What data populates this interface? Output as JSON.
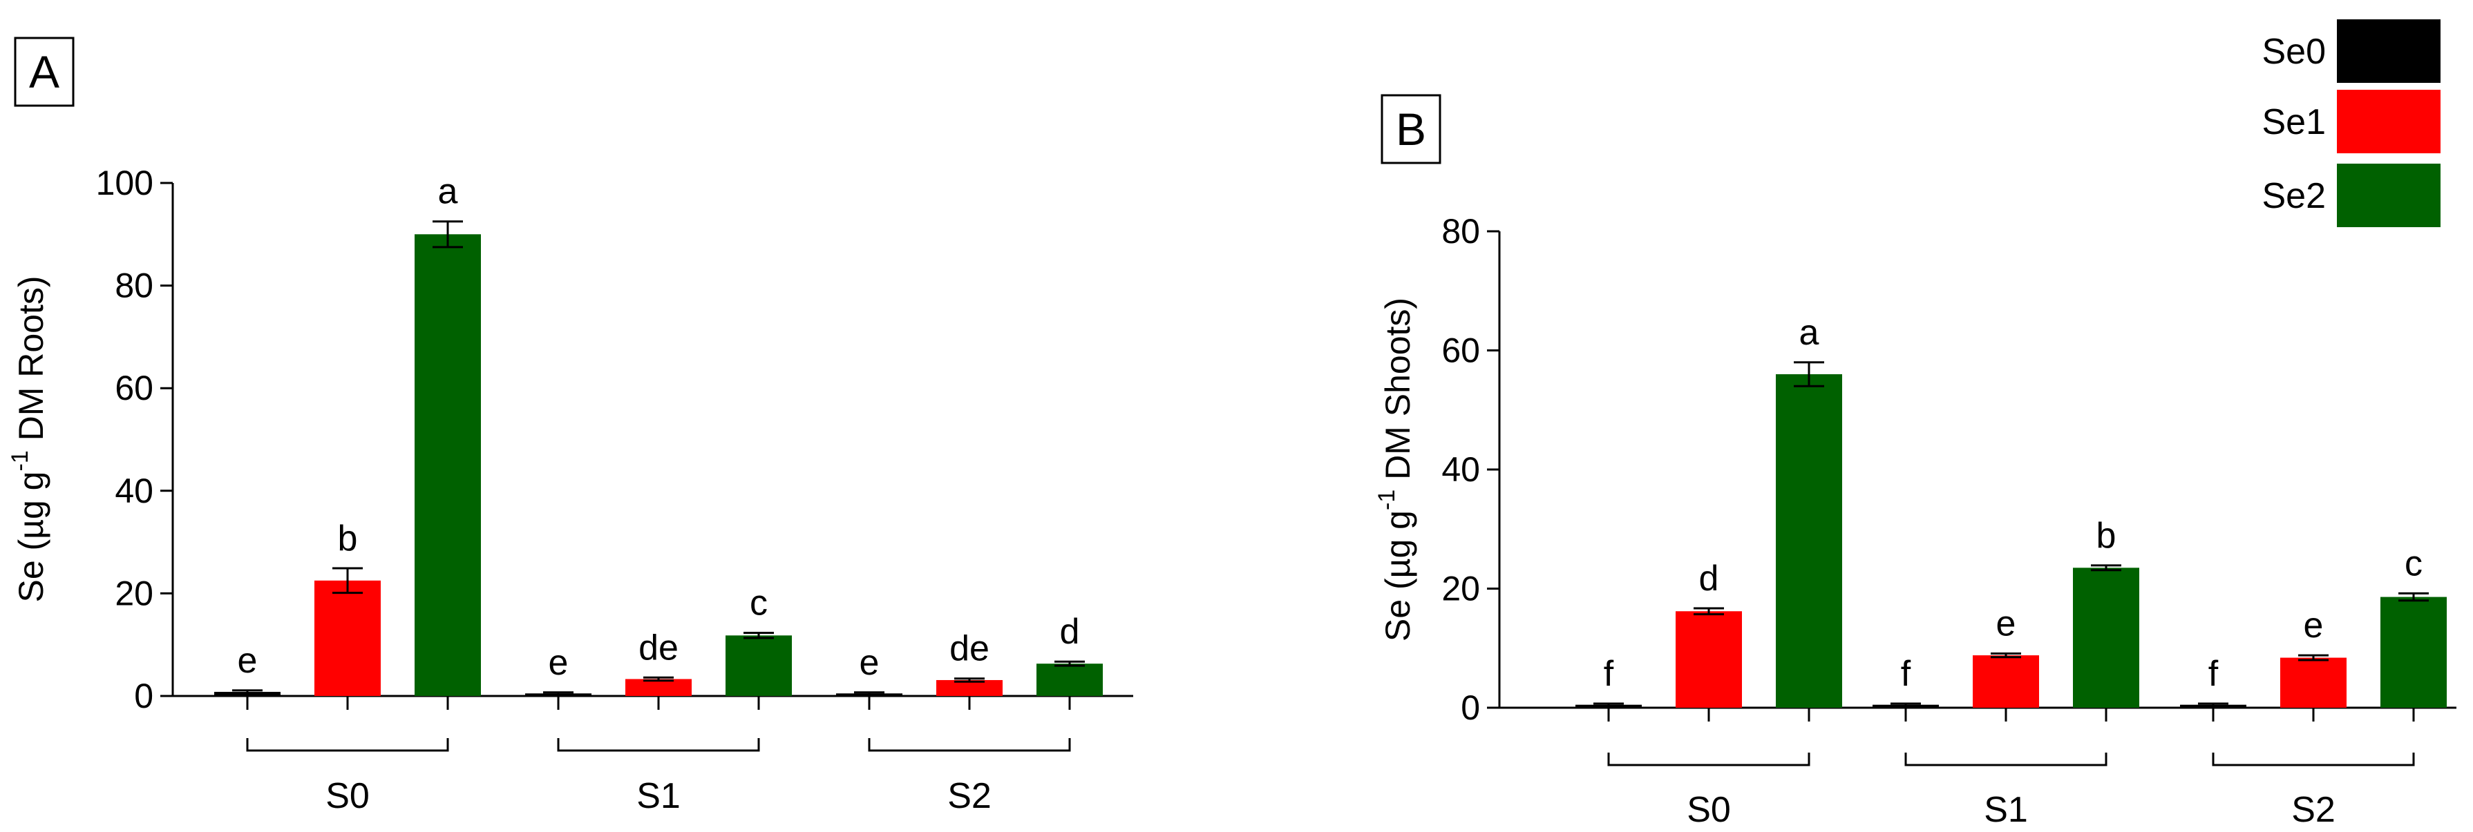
{
  "legend": {
    "entries": [
      {
        "label": "Se0",
        "color": "#000000"
      },
      {
        "label": "Se1",
        "color": "#ff0000"
      },
      {
        "label": "Se2",
        "color": "#006100"
      }
    ]
  },
  "chart_data": [
    {
      "type": "bar",
      "panel_label": "A",
      "ylabel_prefix": "Se (µg g",
      "ylabel_superscript": "-1",
      "ylabel_suffix": " DM Roots)",
      "ylim": [
        0,
        100
      ],
      "yticks": [
        "0",
        "20",
        "40",
        "60",
        "80",
        "100"
      ],
      "groups": [
        "S0",
        "S1",
        "S2"
      ],
      "series": [
        {
          "name": "Se0",
          "values": [
            0.8,
            0.5,
            0.5
          ],
          "errors": [
            0.3,
            0.2,
            0.2
          ],
          "letters": [
            "e",
            "e",
            "e"
          ]
        },
        {
          "name": "Se1",
          "values": [
            22.5,
            3.3,
            3.1
          ],
          "errors": [
            2.4,
            0.3,
            0.3
          ],
          "letters": [
            "b",
            "de",
            "de"
          ]
        },
        {
          "name": "Se2",
          "values": [
            90.0,
            11.8,
            6.3
          ],
          "errors": [
            2.5,
            0.5,
            0.4
          ],
          "letters": [
            "a",
            "c",
            "d"
          ]
        }
      ]
    },
    {
      "type": "bar",
      "panel_label": "B",
      "ylabel_prefix": "Se (µg g",
      "ylabel_superscript": "-1",
      "ylabel_suffix": " DM Shoots)",
      "ylim": [
        0,
        80
      ],
      "yticks": [
        "0",
        "20",
        "40",
        "60",
        "80"
      ],
      "groups": [
        "S0",
        "S1",
        "S2"
      ],
      "series": [
        {
          "name": "Se0",
          "values": [
            0.5,
            0.5,
            0.5
          ],
          "errors": [
            0.2,
            0.2,
            0.2
          ],
          "letters": [
            "f",
            "f",
            "f"
          ]
        },
        {
          "name": "Se1",
          "values": [
            16.2,
            8.8,
            8.4
          ],
          "errors": [
            0.5,
            0.3,
            0.4
          ],
          "letters": [
            "d",
            "e",
            "e"
          ]
        },
        {
          "name": "Se2",
          "values": [
            56.0,
            23.5,
            18.6
          ],
          "errors": [
            2.0,
            0.4,
            0.6
          ],
          "letters": [
            "a",
            "b",
            "c"
          ]
        }
      ]
    }
  ]
}
